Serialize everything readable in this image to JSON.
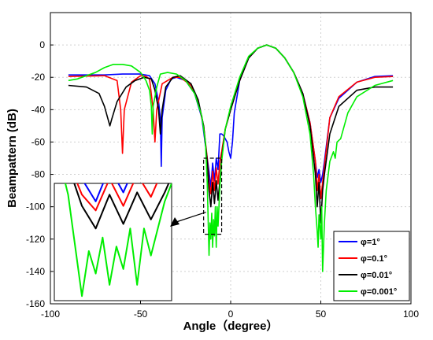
{
  "chart_data": {
    "type": "line",
    "xlabel": "Angle（degree）",
    "ylabel": "Beampattern (dB)",
    "xlim": [
      -100,
      100
    ],
    "ylim": [
      -160,
      20
    ],
    "xticks": [
      "-100",
      "-50",
      "0",
      "50",
      "100"
    ],
    "yticks": [
      "0",
      "-20",
      "-40",
      "-60",
      "-80",
      "-100",
      "-120",
      "-140",
      "-160"
    ],
    "grid": true,
    "legend_position": "bottom-right",
    "main_beam_deg": 20,
    "zoom_box": {
      "x_range": [
        -15,
        -5
      ],
      "y_range": [
        -117,
        -70
      ]
    },
    "series": [
      {
        "name": "φ=1°",
        "color": "#0000ff",
        "points": [
          [
            -90,
            -18.5
          ],
          [
            -70,
            -18.5
          ],
          [
            -60,
            -18
          ],
          [
            -50,
            -18
          ],
          [
            -45,
            -19
          ],
          [
            -42,
            -24
          ],
          [
            -40,
            -35
          ],
          [
            -39,
            -45
          ],
          [
            -38.5,
            -75
          ],
          [
            -38,
            -45
          ],
          [
            -36,
            -28
          ],
          [
            -33,
            -21
          ],
          [
            -30,
            -20
          ],
          [
            -25,
            -22
          ],
          [
            -20,
            -30
          ],
          [
            -16,
            -45
          ],
          [
            -14,
            -62
          ],
          [
            -12,
            -78
          ],
          [
            -11,
            -88
          ],
          [
            -10,
            -73
          ],
          [
            -9,
            -84
          ],
          [
            -8,
            -70
          ],
          [
            -7,
            -77
          ],
          [
            -6,
            -55
          ],
          [
            -5,
            -55
          ],
          [
            -4,
            -56
          ],
          [
            -2,
            -60
          ],
          [
            -1,
            -66
          ],
          [
            0,
            -70
          ],
          [
            1,
            -60
          ],
          [
            2,
            -42
          ],
          [
            5,
            -22
          ],
          [
            10,
            -8
          ],
          [
            15,
            -2
          ],
          [
            20,
            0
          ],
          [
            25,
            -2
          ],
          [
            30,
            -8
          ],
          [
            35,
            -17
          ],
          [
            40,
            -30
          ],
          [
            44,
            -48
          ],
          [
            47,
            -72
          ],
          [
            48,
            -82
          ],
          [
            49,
            -77
          ],
          [
            50,
            -85
          ],
          [
            51,
            -80
          ],
          [
            52,
            -72
          ],
          [
            55,
            -45
          ],
          [
            60,
            -33
          ],
          [
            70,
            -23
          ],
          [
            80,
            -19.5
          ],
          [
            90,
            -19
          ]
        ]
      },
      {
        "name": "φ=0.1°",
        "color": "#ff0000",
        "points": [
          [
            -90,
            -19.5
          ],
          [
            -70,
            -19
          ],
          [
            -63,
            -22
          ],
          [
            -61,
            -40
          ],
          [
            -60,
            -67
          ],
          [
            -59,
            -40
          ],
          [
            -55,
            -23
          ],
          [
            -50,
            -19
          ],
          [
            -47,
            -19.5
          ],
          [
            -45,
            -21
          ],
          [
            -43,
            -40
          ],
          [
            -42,
            -60
          ],
          [
            -41,
            -40
          ],
          [
            -38,
            -24
          ],
          [
            -32,
            -20
          ],
          [
            -28,
            -20
          ],
          [
            -22,
            -25
          ],
          [
            -18,
            -35
          ],
          [
            -15,
            -50
          ],
          [
            -13,
            -70
          ],
          [
            -12,
            -85
          ],
          [
            -11,
            -92
          ],
          [
            -10,
            -78
          ],
          [
            -9,
            -90
          ],
          [
            -8,
            -76
          ],
          [
            -7,
            -86
          ],
          [
            -6,
            -72
          ],
          [
            -5,
            -66
          ],
          [
            -3,
            -52
          ],
          [
            0,
            -40
          ],
          [
            5,
            -22
          ],
          [
            10,
            -8
          ],
          [
            15,
            -2
          ],
          [
            20,
            0
          ],
          [
            25,
            -2
          ],
          [
            30,
            -8
          ],
          [
            35,
            -17
          ],
          [
            40,
            -30
          ],
          [
            44,
            -48
          ],
          [
            47,
            -72
          ],
          [
            48,
            -90
          ],
          [
            49,
            -80
          ],
          [
            50,
            -95
          ],
          [
            51,
            -85
          ],
          [
            52,
            -75
          ],
          [
            55,
            -45
          ],
          [
            60,
            -32
          ],
          [
            70,
            -23
          ],
          [
            80,
            -20
          ],
          [
            90,
            -19.5
          ]
        ]
      },
      {
        "name": "φ=0.01°",
        "color": "#000000",
        "points": [
          [
            -90,
            -25
          ],
          [
            -80,
            -26
          ],
          [
            -73,
            -30
          ],
          [
            -70,
            -38
          ],
          [
            -68,
            -46
          ],
          [
            -67,
            -50
          ],
          [
            -66,
            -46
          ],
          [
            -63,
            -35
          ],
          [
            -58,
            -26
          ],
          [
            -53,
            -22
          ],
          [
            -48,
            -20
          ],
          [
            -44,
            -21
          ],
          [
            -42,
            -28
          ],
          [
            -40,
            -40
          ],
          [
            -39,
            -55
          ],
          [
            -38,
            -40
          ],
          [
            -36,
            -26
          ],
          [
            -32,
            -20
          ],
          [
            -28,
            -19
          ],
          [
            -22,
            -24
          ],
          [
            -18,
            -34
          ],
          [
            -15,
            -50
          ],
          [
            -13,
            -72
          ],
          [
            -12,
            -90
          ],
          [
            -11,
            -100
          ],
          [
            -10,
            -85
          ],
          [
            -9,
            -98
          ],
          [
            -8,
            -84
          ],
          [
            -7,
            -96
          ],
          [
            -6,
            -84
          ],
          [
            -5,
            -70
          ],
          [
            -3,
            -52
          ],
          [
            0,
            -40
          ],
          [
            5,
            -22
          ],
          [
            10,
            -8
          ],
          [
            15,
            -2
          ],
          [
            20,
            0
          ],
          [
            25,
            -2
          ],
          [
            30,
            -8
          ],
          [
            35,
            -17
          ],
          [
            40,
            -30
          ],
          [
            44,
            -50
          ],
          [
            47,
            -80
          ],
          [
            48,
            -100
          ],
          [
            49,
            -85
          ],
          [
            50,
            -110
          ],
          [
            51,
            -90
          ],
          [
            52,
            -80
          ],
          [
            55,
            -55
          ],
          [
            60,
            -38
          ],
          [
            70,
            -28
          ],
          [
            80,
            -26
          ],
          [
            90,
            -26
          ]
        ]
      },
      {
        "name": "φ=0.001°",
        "color": "#00ee00",
        "points": [
          [
            -90,
            -22
          ],
          [
            -85,
            -21
          ],
          [
            -75,
            -17
          ],
          [
            -70,
            -14
          ],
          [
            -65,
            -12
          ],
          [
            -60,
            -12
          ],
          [
            -55,
            -13
          ],
          [
            -50,
            -17
          ],
          [
            -47,
            -22
          ],
          [
            -45,
            -28
          ],
          [
            -44,
            -38
          ],
          [
            -43.5,
            -55
          ],
          [
            -43,
            -38
          ],
          [
            -41,
            -26
          ],
          [
            -39,
            -18
          ],
          [
            -35,
            -17
          ],
          [
            -30,
            -18
          ],
          [
            -25,
            -22
          ],
          [
            -20,
            -30
          ],
          [
            -16,
            -44
          ],
          [
            -14,
            -60
          ],
          [
            -13,
            -85
          ],
          [
            -12,
            -130
          ],
          [
            -11.5,
            -110
          ],
          [
            -11,
            -120
          ],
          [
            -10.5,
            -104
          ],
          [
            -10,
            -125
          ],
          [
            -9.5,
            -108
          ],
          [
            -9,
            -118
          ],
          [
            -8.5,
            -100
          ],
          [
            -8,
            -125
          ],
          [
            -7.5,
            -100
          ],
          [
            -7,
            -112
          ],
          [
            -6,
            -88
          ],
          [
            -5,
            -72
          ],
          [
            -3,
            -52
          ],
          [
            0,
            -38
          ],
          [
            5,
            -20
          ],
          [
            10,
            -7
          ],
          [
            15,
            -2
          ],
          [
            20,
            0
          ],
          [
            25,
            -2
          ],
          [
            30,
            -8
          ],
          [
            35,
            -17
          ],
          [
            40,
            -32
          ],
          [
            44,
            -55
          ],
          [
            46,
            -80
          ],
          [
            47,
            -100
          ],
          [
            48,
            -115
          ],
          [
            48.5,
            -125
          ],
          [
            49,
            -105
          ],
          [
            50,
            -120
          ],
          [
            50.5,
            -100
          ],
          [
            51,
            -140
          ],
          [
            52,
            -110
          ],
          [
            53,
            -90
          ],
          [
            55,
            -72
          ],
          [
            57,
            -66
          ],
          [
            58,
            -70
          ],
          [
            59,
            -60
          ],
          [
            61,
            -58
          ],
          [
            65,
            -42
          ],
          [
            70,
            -32
          ],
          [
            80,
            -25
          ],
          [
            90,
            -22
          ]
        ]
      }
    ]
  }
}
